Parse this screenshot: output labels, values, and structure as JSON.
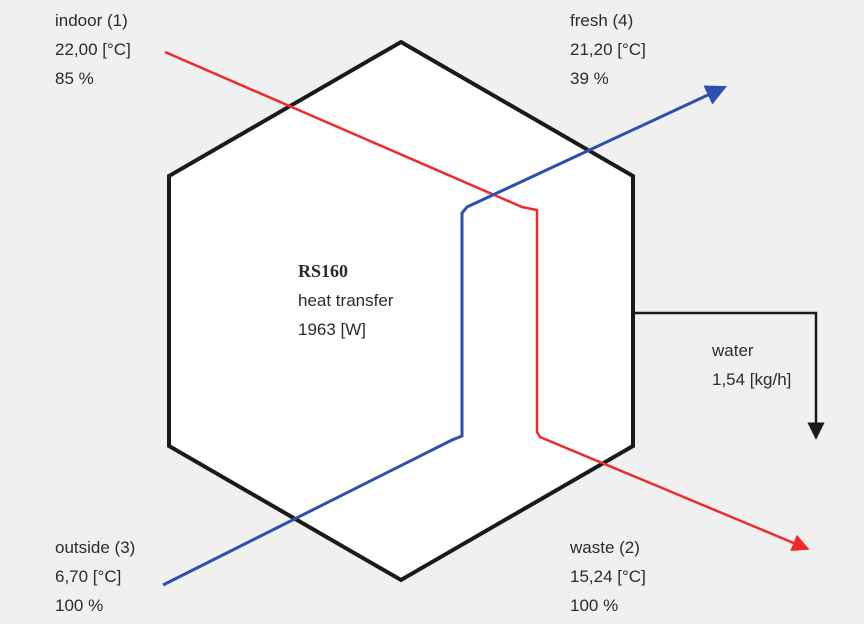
{
  "colors": {
    "background": "#f0f0f0",
    "hexagon_fill": "#ffffff",
    "hexagon_stroke": "#1a1a1a",
    "warm_flow": "#ee2a2a",
    "cold_flow": "#2d4fb0",
    "water_flow": "#1a1a1a"
  },
  "streams": {
    "indoor": {
      "name": "indoor (1)",
      "temperature": "22,00 [°C]",
      "humidity": "85 %"
    },
    "fresh": {
      "name": "fresh (4)",
      "temperature": "21,20 [°C]",
      "humidity": "39 %"
    },
    "outside": {
      "name": "outside (3)",
      "temperature": "6,70 [°C]",
      "humidity": "100 %"
    },
    "waste": {
      "name": "waste (2)",
      "temperature": "15,24 [°C]",
      "humidity": "100 %"
    }
  },
  "unit": {
    "model": "RS160",
    "description": "heat transfer",
    "power": "1963 [W]"
  },
  "water": {
    "label": "water",
    "rate": "1,54 [kg/h]"
  }
}
